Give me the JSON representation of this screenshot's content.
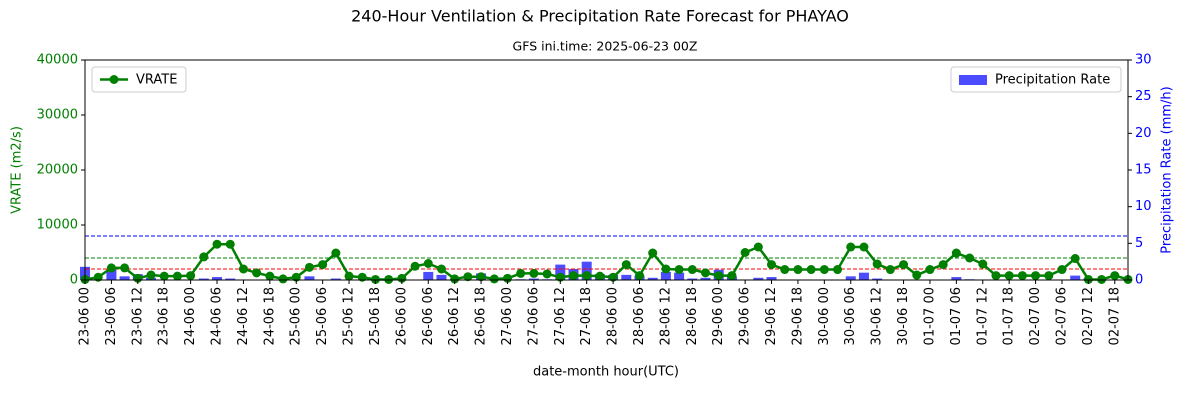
{
  "chart_data": {
    "type": "line",
    "title": "240-Hour Ventilation & Precipitation Rate Forecast for PHAYAO",
    "subtitle": "GFS ini.time: 2025-06-23 00Z",
    "xlabel": "date-month hour(UTC)",
    "ylabel": "VRATE (m2/s)",
    "y2label": "Precipitation Rate (mm/h)",
    "categories": [
      "23-06 00",
      null,
      "23-06 06",
      null,
      "23-06 12",
      null,
      "23-06 18",
      null,
      "24-06 00",
      null,
      "24-06 06",
      null,
      "24-06 12",
      null,
      "24-06 18",
      null,
      "25-06 00",
      null,
      "25-06 06",
      null,
      "25-06 12",
      null,
      "25-06 18",
      null,
      "26-06 00",
      null,
      "26-06 06",
      null,
      "26-06 12",
      null,
      "26-06 18",
      null,
      "27-06 00",
      null,
      "27-06 06",
      null,
      "27-06 12",
      null,
      "27-06 18",
      null,
      "28-06 00",
      null,
      "28-06 06",
      null,
      "28-06 12",
      null,
      "28-06 18",
      null,
      "29-06 00",
      null,
      "29-06 06",
      null,
      "29-06 12",
      null,
      "29-06 18",
      null,
      "30-06 00",
      null,
      "30-06 06",
      null,
      "30-06 12",
      null,
      "30-06 18",
      null,
      "01-07 00",
      null,
      "01-07 06",
      null,
      "01-07 12",
      null,
      "01-07 18",
      null,
      "02-07 00",
      null,
      "02-07 06",
      null,
      "02-07 12",
      null,
      "02-07 18",
      null
    ],
    "series": [
      {
        "name": "VRATE",
        "color": "green",
        "type": "line",
        "values": [
          100,
          500,
          2200,
          2200,
          300,
          900,
          700,
          700,
          800,
          4200,
          6500,
          6500,
          2000,
          1300,
          700,
          200,
          500,
          2300,
          2800,
          4900,
          700,
          500,
          100,
          100,
          300,
          2500,
          3000,
          2000,
          200,
          600,
          600,
          200,
          300,
          1200,
          1200,
          1100,
          500,
          800,
          800,
          700,
          500,
          2800,
          800,
          4900,
          2000,
          1900,
          1900,
          1300,
          800,
          800,
          5000,
          6000,
          2800,
          1900,
          1900,
          1900,
          1900,
          1900,
          6000,
          6000,
          2900,
          1900,
          2800,
          900,
          1900,
          2800,
          4900,
          4000,
          2900,
          800,
          800,
          800,
          800,
          800,
          1900,
          3900,
          100,
          100,
          800,
          100
        ]
      },
      {
        "name": "Precipitation Rate",
        "color": "blue",
        "type": "bar",
        "axis": "y2",
        "values": [
          1.8,
          0,
          1.5,
          0.5,
          0.8,
          0.3,
          0,
          0,
          0,
          0.2,
          0.4,
          0.2,
          0,
          0,
          0,
          0,
          0,
          0.5,
          0,
          0.2,
          0,
          0,
          0,
          0,
          0,
          0,
          1.1,
          0.7,
          0,
          0,
          0.9,
          0.2,
          0,
          0.1,
          0.2,
          0.1,
          2.1,
          1.5,
          2.5,
          0.8,
          0.7,
          0.7,
          0.6,
          0.3,
          1.1,
          1.0,
          0.2,
          0.3,
          1.4,
          0.5,
          0,
          0.3,
          0.4,
          0,
          0,
          0,
          0,
          0,
          0.5,
          1.0,
          0.2,
          0,
          0,
          0,
          0,
          0,
          0.4,
          0.1,
          0,
          0,
          0,
          0,
          0,
          0,
          0,
          0.6,
          0.2,
          0,
          0,
          0
        ]
      }
    ],
    "reference_lines": [
      {
        "value": 2000,
        "color": "red"
      },
      {
        "value": 4000,
        "color": "green"
      },
      {
        "value": 8000,
        "color": "blue"
      }
    ],
    "ylim": [
      0,
      40000
    ],
    "yticks": [
      0,
      10000,
      20000,
      30000,
      40000
    ],
    "y2lim": [
      0,
      30
    ],
    "y2ticks": [
      0,
      5,
      10,
      15,
      20,
      25,
      30
    ],
    "legend": [
      "upper left",
      "upper right"
    ]
  }
}
